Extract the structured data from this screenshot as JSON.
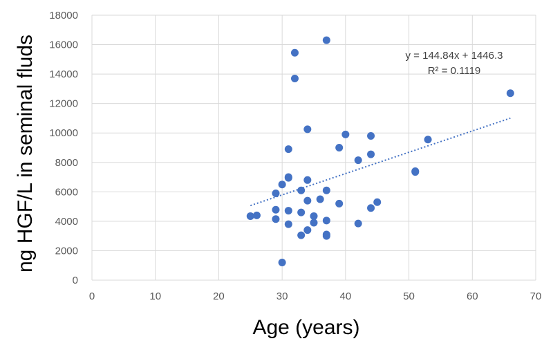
{
  "chart_data": {
    "type": "scatter",
    "title": "",
    "xlabel": "Age (years)",
    "ylabel": "ng HGF/L in seminal fluds",
    "xlim": [
      0,
      70
    ],
    "ylim": [
      0,
      18000
    ],
    "x_ticks": [
      0,
      10,
      20,
      30,
      40,
      50,
      60,
      70
    ],
    "y_ticks": [
      0,
      2000,
      4000,
      6000,
      8000,
      10000,
      12000,
      14000,
      16000,
      18000
    ],
    "x_tick_labels": [
      "0",
      "10",
      "20",
      "30",
      "40",
      "50",
      "60",
      "70"
    ],
    "y_tick_labels": [
      "0",
      "2000",
      "4000",
      "6000",
      "8000",
      "10000",
      "12000",
      "14000",
      "16000",
      "18000"
    ],
    "grid": true,
    "legend": "none",
    "marker_color": "#4472C4",
    "trendline_color": "#4472C4",
    "points": [
      {
        "x": 25,
        "y": 4350
      },
      {
        "x": 26,
        "y": 4400
      },
      {
        "x": 29,
        "y": 5900
      },
      {
        "x": 29,
        "y": 4780
      },
      {
        "x": 29,
        "y": 4150
      },
      {
        "x": 30,
        "y": 6500
      },
      {
        "x": 30,
        "y": 1200
      },
      {
        "x": 31,
        "y": 8900
      },
      {
        "x": 31,
        "y": 7000
      },
      {
        "x": 31,
        "y": 6950
      },
      {
        "x": 31,
        "y": 4720
      },
      {
        "x": 31,
        "y": 3800
      },
      {
        "x": 32,
        "y": 15450
      },
      {
        "x": 32,
        "y": 13700
      },
      {
        "x": 33,
        "y": 6100
      },
      {
        "x": 33,
        "y": 4600
      },
      {
        "x": 33,
        "y": 3050
      },
      {
        "x": 34,
        "y": 10250
      },
      {
        "x": 34,
        "y": 6800
      },
      {
        "x": 34,
        "y": 5400
      },
      {
        "x": 34,
        "y": 3400
      },
      {
        "x": 35,
        "y": 4350
      },
      {
        "x": 35,
        "y": 3900
      },
      {
        "x": 36,
        "y": 5500
      },
      {
        "x": 37,
        "y": 16300
      },
      {
        "x": 37,
        "y": 6100
      },
      {
        "x": 37,
        "y": 4050
      },
      {
        "x": 37,
        "y": 3100
      },
      {
        "x": 37,
        "y": 3000
      },
      {
        "x": 39,
        "y": 9000
      },
      {
        "x": 39,
        "y": 5200
      },
      {
        "x": 40,
        "y": 9900
      },
      {
        "x": 42,
        "y": 8150
      },
      {
        "x": 42,
        "y": 3850
      },
      {
        "x": 44,
        "y": 9800
      },
      {
        "x": 44,
        "y": 8550
      },
      {
        "x": 44,
        "y": 4900
      },
      {
        "x": 45,
        "y": 5300
      },
      {
        "x": 51,
        "y": 7400
      },
      {
        "x": 51,
        "y": 7350
      },
      {
        "x": 53,
        "y": 9550
      },
      {
        "x": 66,
        "y": 12700
      }
    ],
    "trendline": {
      "type": "linear",
      "slope": 144.84,
      "intercept": 1446.3,
      "x_range": [
        25,
        66
      ],
      "equation_label": "y = 144.84x + 1446.3",
      "r2_label": "R² = 0.1119"
    }
  }
}
